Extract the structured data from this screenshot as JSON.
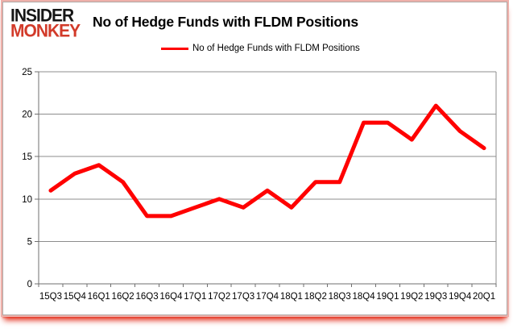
{
  "brand": {
    "line1": "INSIDER",
    "line2": "MONKEY",
    "color": "#d23b2a"
  },
  "header": {
    "title": "No of Hedge Funds with FLDM Positions"
  },
  "legend": {
    "label": "No of Hedge Funds with FLDM Positions",
    "line_color": "#ff0000"
  },
  "chart_data": {
    "type": "line",
    "title": "No of Hedge Funds with FLDM Positions",
    "categories": [
      "15Q3",
      "15Q4",
      "16Q1",
      "16Q2",
      "16Q3",
      "16Q4",
      "17Q1",
      "17Q2",
      "17Q3",
      "17Q4",
      "18Q1",
      "18Q2",
      "18Q3",
      "18Q4",
      "19Q1",
      "19Q2",
      "19Q3",
      "19Q4",
      "20Q1"
    ],
    "series": [
      {
        "name": "No of Hedge Funds with FLDM Positions",
        "color": "#ff0000",
        "values": [
          11,
          13,
          14,
          12,
          8,
          8,
          9,
          10,
          9,
          11,
          9,
          12,
          12,
          19,
          19,
          17,
          21,
          18,
          16
        ]
      }
    ],
    "xlabel": "",
    "ylabel": "",
    "ylim": [
      0,
      25
    ],
    "ytick_step": 5,
    "grid": true,
    "legend_position": "top"
  }
}
